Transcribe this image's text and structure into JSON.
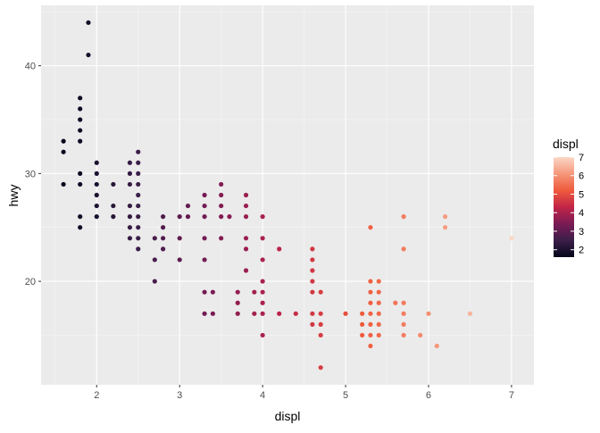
{
  "chart_data": {
    "type": "scatter",
    "xlabel": "displ",
    "ylabel": "hwy",
    "xlim": [
      1.33,
      7.27
    ],
    "ylim": [
      10.4,
      45.6
    ],
    "x_ticks": [
      2,
      3,
      4,
      5,
      6,
      7
    ],
    "x_tick_labels": [
      "2",
      "3",
      "4",
      "5",
      "6",
      "7"
    ],
    "y_ticks": [
      20,
      30,
      40
    ],
    "y_tick_labels": [
      "20",
      "30",
      "40"
    ],
    "grid": true,
    "legend": {
      "title": "displ",
      "position": "right",
      "type": "colorbar",
      "range": [
        1.6,
        7.0
      ],
      "ticks": [
        2,
        3,
        4,
        5,
        6,
        7
      ],
      "tick_labels": [
        "2",
        "3",
        "4",
        "5",
        "6",
        "7"
      ]
    },
    "color_scale": {
      "name": "rocket",
      "stops": [
        "#03051a",
        "#3b1e49",
        "#7a1b55",
        "#c22547",
        "#ef5a3c",
        "#f5977a",
        "#fbd7c6"
      ]
    },
    "colors": {
      "panel_background": "#ebebeb",
      "grid_major": "#ffffff",
      "grid_minor": "#f5f5f5"
    },
    "points": [
      [
        1.6,
        29
      ],
      [
        1.6,
        32
      ],
      [
        1.6,
        33
      ],
      [
        1.8,
        25
      ],
      [
        1.8,
        26
      ],
      [
        1.8,
        29
      ],
      [
        1.8,
        30
      ],
      [
        1.8,
        33
      ],
      [
        1.8,
        34
      ],
      [
        1.8,
        35
      ],
      [
        1.8,
        36
      ],
      [
        1.8,
        37
      ],
      [
        1.9,
        44
      ],
      [
        1.9,
        41
      ],
      [
        2.0,
        26
      ],
      [
        2.0,
        27
      ],
      [
        2.0,
        28
      ],
      [
        2.0,
        29
      ],
      [
        2.0,
        30
      ],
      [
        2.0,
        31
      ],
      [
        2.2,
        26
      ],
      [
        2.2,
        27
      ],
      [
        2.2,
        29
      ],
      [
        2.4,
        24
      ],
      [
        2.4,
        25
      ],
      [
        2.4,
        26
      ],
      [
        2.4,
        27
      ],
      [
        2.4,
        29
      ],
      [
        2.4,
        30
      ],
      [
        2.4,
        31
      ],
      [
        2.5,
        23
      ],
      [
        2.5,
        24
      ],
      [
        2.5,
        25
      ],
      [
        2.5,
        26
      ],
      [
        2.5,
        27
      ],
      [
        2.5,
        28
      ],
      [
        2.5,
        29
      ],
      [
        2.5,
        30
      ],
      [
        2.5,
        31
      ],
      [
        2.5,
        32
      ],
      [
        2.7,
        20
      ],
      [
        2.7,
        22
      ],
      [
        2.7,
        24
      ],
      [
        2.8,
        23
      ],
      [
        2.8,
        24
      ],
      [
        2.8,
        25
      ],
      [
        2.8,
        26
      ],
      [
        3.0,
        22
      ],
      [
        3.0,
        24
      ],
      [
        3.0,
        26
      ],
      [
        3.1,
        26
      ],
      [
        3.1,
        27
      ],
      [
        3.3,
        17
      ],
      [
        3.3,
        19
      ],
      [
        3.3,
        22
      ],
      [
        3.3,
        24
      ],
      [
        3.3,
        26
      ],
      [
        3.3,
        27
      ],
      [
        3.3,
        28
      ],
      [
        3.4,
        17
      ],
      [
        3.4,
        19
      ],
      [
        3.5,
        24
      ],
      [
        3.5,
        26
      ],
      [
        3.5,
        27
      ],
      [
        3.5,
        28
      ],
      [
        3.5,
        29
      ],
      [
        3.6,
        26
      ],
      [
        3.7,
        17
      ],
      [
        3.7,
        18
      ],
      [
        3.7,
        19
      ],
      [
        3.8,
        21
      ],
      [
        3.8,
        23
      ],
      [
        3.8,
        24
      ],
      [
        3.8,
        26
      ],
      [
        3.8,
        27
      ],
      [
        3.8,
        28
      ],
      [
        3.9,
        17
      ],
      [
        3.9,
        19
      ],
      [
        4.0,
        15
      ],
      [
        4.0,
        17
      ],
      [
        4.0,
        18
      ],
      [
        4.0,
        19
      ],
      [
        4.0,
        20
      ],
      [
        4.0,
        22
      ],
      [
        4.0,
        24
      ],
      [
        4.0,
        26
      ],
      [
        4.2,
        17
      ],
      [
        4.2,
        23
      ],
      [
        4.4,
        17
      ],
      [
        4.6,
        16
      ],
      [
        4.6,
        17
      ],
      [
        4.6,
        19
      ],
      [
        4.6,
        20
      ],
      [
        4.6,
        21
      ],
      [
        4.6,
        22
      ],
      [
        4.6,
        23
      ],
      [
        4.7,
        12
      ],
      [
        4.7,
        15
      ],
      [
        4.7,
        16
      ],
      [
        4.7,
        17
      ],
      [
        4.7,
        19
      ],
      [
        5.0,
        17
      ],
      [
        5.2,
        15
      ],
      [
        5.2,
        16
      ],
      [
        5.2,
        17
      ],
      [
        5.3,
        14
      ],
      [
        5.3,
        15
      ],
      [
        5.3,
        16
      ],
      [
        5.3,
        17
      ],
      [
        5.3,
        18
      ],
      [
        5.3,
        19
      ],
      [
        5.3,
        20
      ],
      [
        5.3,
        25
      ],
      [
        5.4,
        15
      ],
      [
        5.4,
        16
      ],
      [
        5.4,
        17
      ],
      [
        5.4,
        18
      ],
      [
        5.4,
        19
      ],
      [
        5.4,
        20
      ],
      [
        5.6,
        18
      ],
      [
        5.7,
        15
      ],
      [
        5.7,
        16
      ],
      [
        5.7,
        17
      ],
      [
        5.7,
        18
      ],
      [
        5.7,
        23
      ],
      [
        5.7,
        26
      ],
      [
        5.9,
        15
      ],
      [
        6.0,
        17
      ],
      [
        6.1,
        14
      ],
      [
        6.2,
        25
      ],
      [
        6.2,
        26
      ],
      [
        6.5,
        17
      ],
      [
        7.0,
        24
      ]
    ]
  }
}
